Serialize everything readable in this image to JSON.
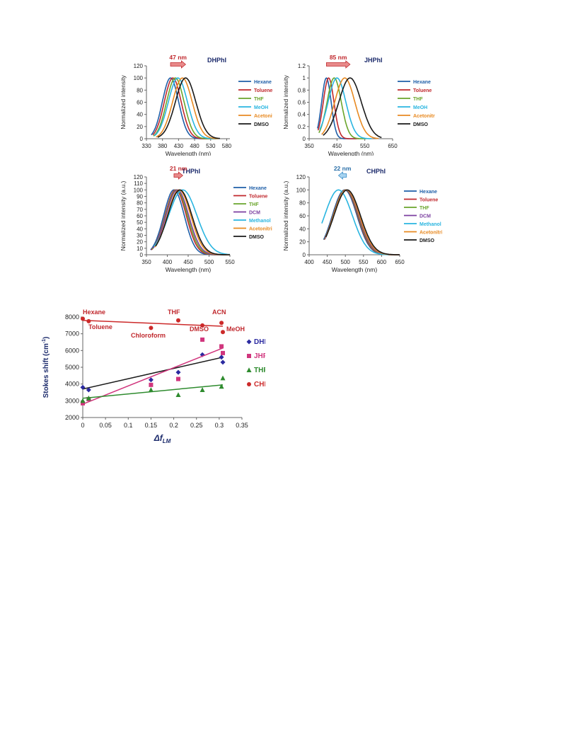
{
  "colors": {
    "hexane": "#1f5fa8",
    "toluene": "#c0282d",
    "thf": "#6aa52b",
    "dcm": "#7b3fa0",
    "meoh": "#2ab5e0",
    "acetonitrile": "#e88a22",
    "dmso": "#1a1a1a",
    "title": "#1b2a6b",
    "arrow_pink": "#e88a8a",
    "arrow_blue": "#a8d4f0",
    "scatter_dhphi": "#2b2aa0",
    "scatter_jhphi": "#d0357d",
    "scatter_thphi": "#2e8b2e",
    "scatter_chphi": "#cc2a2a",
    "scatter_label": "#c0282d"
  },
  "chart_data": [
    {
      "type": "line",
      "title": "DHPhI",
      "xlabel": "Wavelength (nm)",
      "ylabel": "Normalized intensity",
      "xlim": [
        330,
        590
      ],
      "ylim": [
        0,
        120
      ],
      "xticks": [
        "330",
        "380",
        "430",
        "480",
        "530",
        "580"
      ],
      "yticks": [
        "0",
        "20",
        "40",
        "60",
        "80",
        "100",
        "120"
      ],
      "shift_label": "47 nm",
      "shift_from": 405,
      "shift_to": 452,
      "series": [
        {
          "name": "Hexane",
          "peak": 405,
          "fwhm": 60,
          "start": 345,
          "end": 545
        },
        {
          "name": "Toluene",
          "peak": 412,
          "fwhm": 62,
          "start": 350,
          "end": 548
        },
        {
          "name": "THF",
          "peak": 420,
          "fwhm": 64,
          "start": 352,
          "end": 550
        },
        {
          "name": "MeOH",
          "peak": 428,
          "fwhm": 70,
          "start": 355,
          "end": 552
        },
        {
          "name": "Acetonitrile",
          "peak": 442,
          "fwhm": 72,
          "start": 360,
          "end": 555
        },
        {
          "name": "DMSO",
          "peak": 452,
          "fwhm": 75,
          "start": 365,
          "end": 560
        }
      ]
    },
    {
      "type": "line",
      "title": "JHPhI",
      "xlabel": "Wavelength (nm)",
      "ylabel": "Normalized intensity",
      "xlim": [
        350,
        650
      ],
      "ylim": [
        0,
        1.2
      ],
      "xticks": [
        "350",
        "450",
        "550",
        "650"
      ],
      "yticks": [
        "0",
        "0.2",
        "0.4",
        "0.6",
        "0.8",
        "1",
        "1.2"
      ],
      "shift_label": "85 nm",
      "shift_from": 412,
      "shift_to": 497,
      "series": [
        {
          "name": "Hexane",
          "peak": 412,
          "fwhm": 40,
          "start": 380,
          "end": 520
        },
        {
          "name": "Toluene",
          "peak": 420,
          "fwhm": 45,
          "start": 382,
          "end": 530
        },
        {
          "name": "THF",
          "peak": 440,
          "fwhm": 60,
          "start": 385,
          "end": 555
        },
        {
          "name": "MeOH",
          "peak": 450,
          "fwhm": 75,
          "start": 388,
          "end": 575
        },
        {
          "name": "Acetonitrile",
          "peak": 478,
          "fwhm": 85,
          "start": 395,
          "end": 600
        },
        {
          "name": "DMSO",
          "peak": 497,
          "fwhm": 95,
          "start": 400,
          "end": 610
        }
      ]
    },
    {
      "type": "line",
      "title": "THPhI",
      "xlabel": "Wavelength (nm)",
      "ylabel": "Normalized intensity (a.u.)",
      "xlim": [
        350,
        550
      ],
      "ylim": [
        0,
        120
      ],
      "xticks": [
        "350",
        "400",
        "450",
        "500",
        "550"
      ],
      "yticks": [
        "0",
        "10",
        "20",
        "30",
        "40",
        "50",
        "60",
        "70",
        "80",
        "90",
        "100",
        "110",
        "120"
      ],
      "shift_label": "21 nm",
      "shift_from": 416,
      "shift_to": 437,
      "series": [
        {
          "name": "Hexane",
          "peak": 416,
          "fwhm": 58,
          "start": 360,
          "end": 548
        },
        {
          "name": "Toluene",
          "peak": 420,
          "fwhm": 60,
          "start": 362,
          "end": 550
        },
        {
          "name": "THF",
          "peak": 422,
          "fwhm": 62,
          "start": 364,
          "end": 550
        },
        {
          "name": "DCM",
          "peak": 424,
          "fwhm": 64,
          "start": 366,
          "end": 550
        },
        {
          "name": "Methanol",
          "peak": 437,
          "fwhm": 80,
          "start": 368,
          "end": 550
        },
        {
          "name": "Acetonitrile",
          "peak": 428,
          "fwhm": 66,
          "start": 370,
          "end": 550
        },
        {
          "name": "DMSO",
          "peak": 430,
          "fwhm": 68,
          "start": 372,
          "end": 550
        }
      ]
    },
    {
      "type": "line",
      "title": "CHPhI",
      "xlabel": "Wavelength (nm)",
      "ylabel": "Normalized intensity (a.u.)",
      "xlim": [
        400,
        650
      ],
      "ylim": [
        0,
        120
      ],
      "xticks": [
        "400",
        "450",
        "500",
        "550",
        "600",
        "650"
      ],
      "yticks": [
        "0",
        "20",
        "40",
        "60",
        "80",
        "100",
        "120"
      ],
      "shift_label": "22 nm",
      "shift_from": 503,
      "shift_to": 481,
      "series": [
        {
          "name": "Hexane",
          "peak": 498,
          "fwhm": 80,
          "start": 440,
          "end": 650
        },
        {
          "name": "Toluene",
          "peak": 500,
          "fwhm": 80,
          "start": 442,
          "end": 650
        },
        {
          "name": "THF",
          "peak": 501,
          "fwhm": 81,
          "start": 443,
          "end": 650
        },
        {
          "name": "DCM",
          "peak": 502,
          "fwhm": 82,
          "start": 444,
          "end": 650
        },
        {
          "name": "Methanol",
          "peak": 481,
          "fwhm": 90,
          "start": 435,
          "end": 620
        },
        {
          "name": "Acetonitrile",
          "peak": 503,
          "fwhm": 84,
          "start": 445,
          "end": 650
        },
        {
          "name": "DMSO",
          "peak": 505,
          "fwhm": 86,
          "start": 446,
          "end": 650
        }
      ]
    },
    {
      "type": "scatter",
      "title": "",
      "xlabel": "Δf",
      "xlabel_sub": "LM",
      "ylabel": "Stokes shift (cm",
      "ylabel_sup": "-1",
      "ylabel_end": ")",
      "xlim": [
        0,
        0.35
      ],
      "ylim": [
        2000,
        8000
      ],
      "xticks": [
        "0",
        "0.05",
        "0.1",
        "0.15",
        "0.2",
        "0.25",
        "0.3",
        "0.35"
      ],
      "yticks": [
        "2000",
        "3000",
        "4000",
        "5000",
        "6000",
        "7000",
        "8000"
      ],
      "solvent_labels": [
        "Hexane",
        "Toluene",
        "Chloroform",
        "THF",
        "DMSO",
        "ACN",
        "MeOH"
      ],
      "series": [
        {
          "name": "DHPhI",
          "marker": "diamond",
          "x": [
            0.0,
            0.013,
            0.15,
            0.21,
            0.263,
            0.305,
            0.308
          ],
          "y": [
            3800,
            3650,
            4250,
            4700,
            5750,
            5600,
            5300
          ],
          "fit": [
            [
              0,
              3700
            ],
            [
              0.308,
              5600
            ]
          ]
        },
        {
          "name": "JHPhI",
          "marker": "square",
          "x": [
            0.0,
            0.013,
            0.15,
            0.21,
            0.263,
            0.305,
            0.308
          ],
          "y": [
            2850,
            3100,
            3950,
            4300,
            6650,
            6250,
            5850
          ],
          "fit": [
            [
              0,
              2800
            ],
            [
              0.308,
              6150
            ]
          ]
        },
        {
          "name": "THPhI",
          "marker": "triangle",
          "x": [
            0.0,
            0.013,
            0.15,
            0.21,
            0.263,
            0.305,
            0.308
          ],
          "y": [
            3000,
            3150,
            3650,
            3350,
            3650,
            3850,
            4350
          ],
          "fit": [
            [
              0,
              3150
            ],
            [
              0.308,
              3950
            ]
          ]
        },
        {
          "name": "CHPhI",
          "marker": "circle",
          "x": [
            0.0,
            0.013,
            0.15,
            0.21,
            0.263,
            0.305,
            0.308
          ],
          "y": [
            7900,
            7750,
            7350,
            7800,
            7500,
            7650,
            7100
          ],
          "fit": [
            [
              0,
              7800
            ],
            [
              0.308,
              7450
            ]
          ]
        }
      ]
    }
  ]
}
